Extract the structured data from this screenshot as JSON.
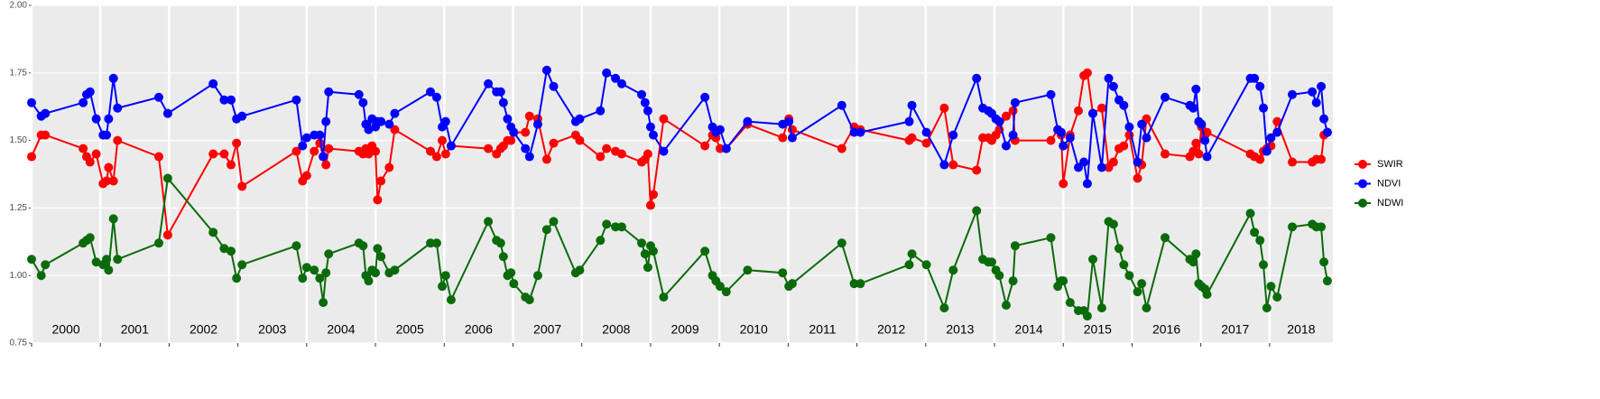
{
  "chart_data": {
    "type": "line",
    "x": [
      2000.0,
      2000.14,
      2000.2,
      2000.75,
      2000.8,
      2000.85,
      2000.94,
      2001.04,
      2001.09,
      2001.12,
      2001.19,
      2001.25,
      2001.85,
      2001.98,
      2002.64,
      2002.8,
      2002.9,
      2002.98,
      2003.06,
      2003.85,
      2003.94,
      2004.0,
      2004.11,
      2004.19,
      2004.24,
      2004.28,
      2004.32,
      2004.76,
      2004.82,
      2004.86,
      2004.9,
      2004.95,
      2005.0,
      2005.03,
      2005.08,
      2005.2,
      2005.28,
      2005.8,
      2005.89,
      2005.97,
      2006.02,
      2006.1,
      2006.64,
      2006.76,
      2006.82,
      2006.86,
      2006.92,
      2006.97,
      2007.01,
      2007.18,
      2007.24,
      2007.36,
      2007.49,
      2007.59,
      2007.91,
      2007.97,
      2008.27,
      2008.36,
      2008.49,
      2008.58,
      2008.87,
      2008.92,
      2008.96,
      2009.0,
      2009.04,
      2009.19,
      2009.79,
      2009.9,
      2009.95,
      2010.01,
      2010.1,
      2010.41,
      2010.92,
      2011.01,
      2011.06,
      2011.78,
      2011.96,
      2012.05,
      2012.76,
      2012.8,
      2013.01,
      2013.27,
      2013.4,
      2013.74,
      2013.83,
      2013.91,
      2013.96,
      2014.02,
      2014.07,
      2014.17,
      2014.27,
      2014.3,
      2014.82,
      2014.92,
      2014.97,
      2015.0,
      2015.1,
      2015.22,
      2015.3,
      2015.35,
      2015.43,
      2015.56,
      2015.66,
      2015.73,
      2015.81,
      2015.88,
      2015.96,
      2016.08,
      2016.14,
      2016.21,
      2016.48,
      2016.84,
      2016.89,
      2016.93,
      2016.97,
      2017.01,
      2017.06,
      2017.09,
      2017.72,
      2017.78,
      2017.86,
      2017.91,
      2017.96,
      2018.02,
      2018.11,
      2018.33,
      2018.62,
      2018.68,
      2018.75,
      2018.79,
      2018.84
    ],
    "series": [
      {
        "name": "SWIR",
        "color": "#ff0000",
        "values": [
          1.44,
          1.52,
          1.52,
          1.47,
          1.44,
          1.42,
          1.45,
          1.34,
          1.35,
          1.4,
          1.35,
          1.5,
          1.44,
          1.15,
          1.45,
          1.45,
          1.41,
          1.49,
          1.33,
          1.46,
          1.35,
          1.37,
          1.46,
          1.49,
          1.44,
          1.41,
          1.47,
          1.46,
          1.45,
          1.47,
          1.45,
          1.48,
          1.46,
          1.28,
          1.35,
          1.4,
          1.54,
          1.46,
          1.44,
          1.5,
          1.45,
          1.48,
          1.47,
          1.45,
          1.47,
          1.48,
          1.5,
          1.5,
          1.53,
          1.53,
          1.59,
          1.58,
          1.43,
          1.49,
          1.52,
          1.5,
          1.44,
          1.47,
          1.46,
          1.45,
          1.42,
          1.43,
          1.45,
          1.26,
          1.3,
          1.58,
          1.48,
          1.52,
          1.51,
          1.47,
          1.47,
          1.56,
          1.51,
          1.58,
          1.54,
          1.47,
          1.55,
          1.54,
          1.5,
          1.51,
          1.49,
          1.62,
          1.41,
          1.39,
          1.51,
          1.51,
          1.5,
          1.52,
          1.54,
          1.59,
          1.61,
          1.5,
          1.5,
          1.54,
          1.52,
          1.34,
          1.52,
          1.61,
          1.74,
          1.75,
          1.6,
          1.62,
          1.4,
          1.42,
          1.47,
          1.48,
          1.52,
          1.36,
          1.41,
          1.58,
          1.45,
          1.44,
          1.46,
          1.49,
          1.45,
          1.55,
          1.52,
          1.53,
          1.45,
          1.44,
          1.43,
          1.46,
          1.47,
          1.48,
          1.57,
          1.42,
          1.42,
          1.43,
          1.43,
          1.52,
          1.53
        ]
      },
      {
        "name": "NDVI",
        "color": "#0000ff",
        "values": [
          1.64,
          1.59,
          1.6,
          1.64,
          1.67,
          1.68,
          1.58,
          1.52,
          1.52,
          1.58,
          1.73,
          1.62,
          1.66,
          1.6,
          1.71,
          1.65,
          1.65,
          1.58,
          1.59,
          1.65,
          1.48,
          1.51,
          1.52,
          1.52,
          1.44,
          1.57,
          1.68,
          1.67,
          1.64,
          1.56,
          1.54,
          1.58,
          1.55,
          1.57,
          1.57,
          1.56,
          1.6,
          1.68,
          1.66,
          1.55,
          1.57,
          1.48,
          1.71,
          1.68,
          1.68,
          1.64,
          1.58,
          1.55,
          1.53,
          1.47,
          1.44,
          1.56,
          1.76,
          1.7,
          1.57,
          1.58,
          1.61,
          1.75,
          1.73,
          1.71,
          1.67,
          1.64,
          1.61,
          1.55,
          1.52,
          1.46,
          1.66,
          1.55,
          1.53,
          1.54,
          1.47,
          1.57,
          1.56,
          1.57,
          1.51,
          1.63,
          1.53,
          1.53,
          1.57,
          1.63,
          1.53,
          1.41,
          1.52,
          1.73,
          1.62,
          1.61,
          1.6,
          1.58,
          1.57,
          1.48,
          1.52,
          1.64,
          1.67,
          1.54,
          1.53,
          1.48,
          1.51,
          1.4,
          1.42,
          1.34,
          1.6,
          1.4,
          1.73,
          1.7,
          1.65,
          1.63,
          1.55,
          1.42,
          1.56,
          1.51,
          1.66,
          1.63,
          1.62,
          1.69,
          1.57,
          1.56,
          1.5,
          1.44,
          1.73,
          1.73,
          1.7,
          1.62,
          1.46,
          1.51,
          1.53,
          1.67,
          1.68,
          1.64,
          1.7,
          1.58,
          1.53
        ]
      },
      {
        "name": "NDWI",
        "color": "#0b6b0b",
        "values": [
          1.06,
          1.0,
          1.04,
          1.12,
          1.13,
          1.14,
          1.05,
          1.04,
          1.06,
          1.02,
          1.21,
          1.06,
          1.12,
          1.36,
          1.16,
          1.1,
          1.09,
          0.99,
          1.04,
          1.11,
          0.99,
          1.03,
          1.02,
          0.99,
          0.9,
          1.01,
          1.08,
          1.12,
          1.11,
          1.0,
          0.98,
          1.02,
          1.01,
          1.1,
          1.07,
          1.01,
          1.02,
          1.12,
          1.12,
          0.96,
          1.0,
          0.91,
          1.2,
          1.13,
          1.12,
          1.07,
          1.0,
          1.01,
          0.97,
          0.92,
          0.91,
          1.0,
          1.17,
          1.2,
          1.01,
          1.02,
          1.13,
          1.19,
          1.18,
          1.18,
          1.12,
          1.08,
          1.03,
          1.11,
          1.09,
          0.92,
          1.09,
          1.0,
          0.98,
          0.96,
          0.94,
          1.02,
          1.01,
          0.96,
          0.97,
          1.12,
          0.97,
          0.97,
          1.04,
          1.08,
          1.04,
          0.88,
          1.02,
          1.24,
          1.06,
          1.05,
          1.05,
          1.02,
          1.0,
          0.89,
          0.98,
          1.11,
          1.14,
          0.96,
          0.98,
          0.98,
          0.9,
          0.87,
          0.87,
          0.85,
          1.06,
          0.88,
          1.2,
          1.19,
          1.1,
          1.04,
          1.0,
          0.94,
          0.97,
          0.88,
          1.14,
          1.06,
          1.05,
          1.08,
          0.97,
          0.96,
          0.95,
          0.93,
          1.23,
          1.16,
          1.13,
          1.04,
          0.88,
          0.96,
          0.92,
          1.18,
          1.19,
          1.18,
          1.18,
          1.05,
          0.98
        ]
      }
    ],
    "xlim": [
      2000,
      2018.92
    ],
    "xticks": [
      2000,
      2001,
      2002,
      2003,
      2004,
      2005,
      2006,
      2007,
      2008,
      2009,
      2010,
      2011,
      2012,
      2013,
      2014,
      2015,
      2016,
      2017,
      2018
    ],
    "ylim": [
      0.75,
      2.0
    ],
    "yticks": [
      0.75,
      {
        "value": 1.0,
        "label": "1.00"
      },
      1.25,
      {
        "value": 1.5,
        "label": "1.50"
      },
      1.75,
      {
        "value": 2.0,
        "label": "2.00"
      }
    ],
    "grid": true,
    "legend": "right"
  }
}
